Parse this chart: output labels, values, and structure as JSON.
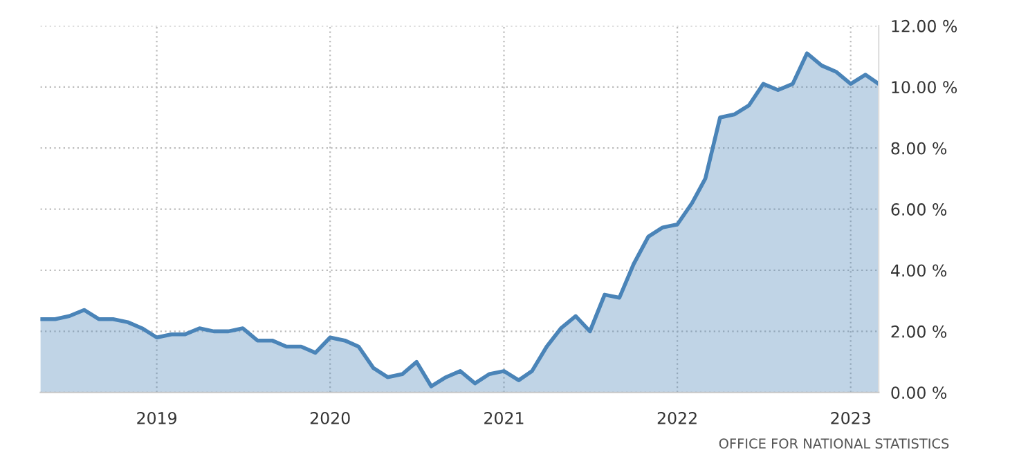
{
  "chart_data": {
    "type": "area",
    "x": [
      "2018-05",
      "2018-06",
      "2018-07",
      "2018-08",
      "2018-09",
      "2018-10",
      "2018-11",
      "2018-12",
      "2019-01",
      "2019-02",
      "2019-03",
      "2019-04",
      "2019-05",
      "2019-06",
      "2019-07",
      "2019-08",
      "2019-09",
      "2019-10",
      "2019-11",
      "2019-12",
      "2020-01",
      "2020-02",
      "2020-03",
      "2020-04",
      "2020-05",
      "2020-06",
      "2020-07",
      "2020-08",
      "2020-09",
      "2020-10",
      "2020-11",
      "2020-12",
      "2021-01",
      "2021-02",
      "2021-03",
      "2021-04",
      "2021-05",
      "2021-06",
      "2021-07",
      "2021-08",
      "2021-09",
      "2021-10",
      "2021-11",
      "2021-12",
      "2022-01",
      "2022-02",
      "2022-03",
      "2022-04",
      "2022-05",
      "2022-06",
      "2022-07",
      "2022-08",
      "2022-09",
      "2022-10",
      "2022-11",
      "2022-12",
      "2023-01",
      "2023-02",
      "2023-03"
    ],
    "series": [
      {
        "color": "#4a84b8",
        "values": [
          2.4,
          2.4,
          2.5,
          2.7,
          2.4,
          2.4,
          2.3,
          2.1,
          1.8,
          1.9,
          1.9,
          2.1,
          2.0,
          2.0,
          2.1,
          1.7,
          1.7,
          1.5,
          1.5,
          1.3,
          1.8,
          1.7,
          1.5,
          0.8,
          0.5,
          0.6,
          1.0,
          0.2,
          0.5,
          0.7,
          0.3,
          0.6,
          0.7,
          0.4,
          0.7,
          1.5,
          2.1,
          2.5,
          2.0,
          3.2,
          3.1,
          4.2,
          5.1,
          5.4,
          5.5,
          6.2,
          7.0,
          9.0,
          9.1,
          9.4,
          10.1,
          9.9,
          10.1,
          11.1,
          10.7,
          10.5,
          10.1,
          10.4,
          10.1
        ]
      }
    ],
    "xlim": [
      "2018-05",
      "2023-03"
    ],
    "xticks": [
      {
        "value": "2019-01",
        "label": "2019"
      },
      {
        "value": "2020-01",
        "label": "2020"
      },
      {
        "value": "2021-01",
        "label": "2021"
      },
      {
        "value": "2022-01",
        "label": "2022"
      },
      {
        "value": "2023-01",
        "label": "2023"
      }
    ],
    "ylim": [
      0,
      12
    ],
    "yticks": [
      {
        "value": 0,
        "label": "0.00 %"
      },
      {
        "value": 2,
        "label": "2.00 %"
      },
      {
        "value": 4,
        "label": "4.00 %"
      },
      {
        "value": 6,
        "label": "6.00 %"
      },
      {
        "value": 8,
        "label": "8.00 %"
      },
      {
        "value": 10,
        "label": "10.00 %"
      },
      {
        "value": 12,
        "label": "12.00 %"
      }
    ],
    "grid": true,
    "annotations": [
      "OFFICE FOR NATIONAL STATISTICS"
    ]
  }
}
